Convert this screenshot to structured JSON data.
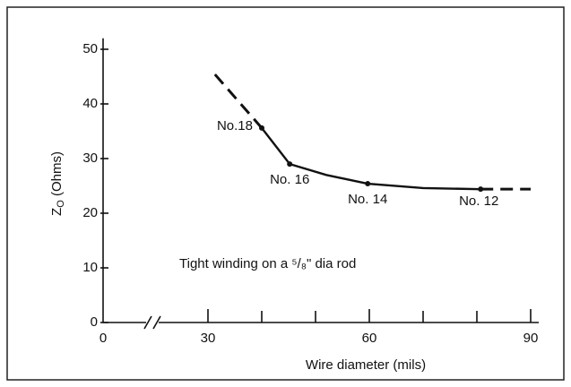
{
  "chart_data": {
    "type": "line",
    "x_label": "Wire diameter (mils)",
    "y_label": {
      "main": "Z",
      "sub": "O",
      "rest": " (Ohms)"
    },
    "annotation": "Tight winding on a ⁵/₈\" dia rod",
    "xlim": [
      0,
      91.5
    ],
    "xticks": [
      0,
      30,
      60,
      90
    ],
    "xminor": [
      40,
      50,
      70,
      80
    ],
    "x_axis_break": true,
    "ylim": [
      0,
      52
    ],
    "yticks": [
      0,
      10,
      20,
      30,
      40,
      50
    ],
    "color": "#111111",
    "series": [
      {
        "x": [
          31.3,
          40
        ],
        "values": [
          45.4,
          35.6
        ],
        "dashed": true
      },
      {
        "x": [
          40,
          45.2,
          52,
          59.7,
          70,
          80.7
        ],
        "values": [
          35.6,
          29,
          27,
          25.4,
          24.6,
          24.4
        ],
        "dashed": false
      },
      {
        "x": [
          80.7,
          90
        ],
        "values": [
          24.4,
          24.4
        ],
        "dashed": true
      }
    ],
    "points": [
      {
        "label": "No.18",
        "x": 40,
        "y": 35.6
      },
      {
        "label": "No. 16",
        "x": 45.2,
        "y": 29
      },
      {
        "label": "No. 14",
        "x": 59.7,
        "y": 25.4
      },
      {
        "label": "No. 12",
        "x": 80.7,
        "y": 24.4
      }
    ]
  }
}
